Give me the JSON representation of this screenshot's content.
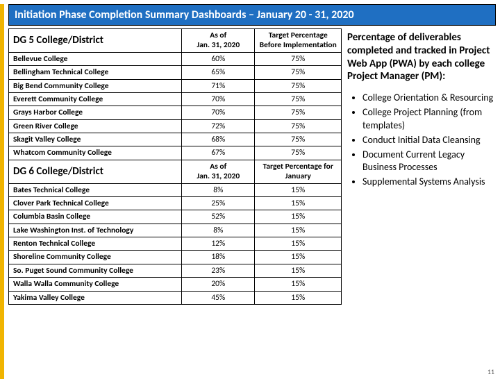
{
  "title": "Initiation Phase Completion Summary Dashboards – January 20 - 31, 2020",
  "page_number": "11",
  "accent_bar_color": "#f0b400",
  "title_bar_bg": "#1f6fc2",
  "group1": {
    "header": "DG 5 College/District",
    "col2": "As of\nJan. 31, 2020",
    "col3": "Target Percentage Before Implementation",
    "rows": [
      {
        "name": "Bellevue College",
        "asof": "60%",
        "target": "75%"
      },
      {
        "name": "Bellingham Technical College",
        "asof": "65%",
        "target": "75%"
      },
      {
        "name": "Big Bend Community College",
        "asof": "71%",
        "target": "75%"
      },
      {
        "name": "Everett Community College",
        "asof": "70%",
        "target": "75%"
      },
      {
        "name": "Grays Harbor College",
        "asof": "70%",
        "target": "75%"
      },
      {
        "name": "Green River College",
        "asof": "72%",
        "target": "75%"
      },
      {
        "name": "Skagit Valley College",
        "asof": "68%",
        "target": "75%"
      },
      {
        "name": "Whatcom Community College",
        "asof": "67%",
        "target": "75%"
      }
    ]
  },
  "group2": {
    "header": "DG 6 College/District",
    "col2": "As of\nJan. 31, 2020",
    "col3": "Target Percentage for January",
    "rows": [
      {
        "name": "Bates Technical College",
        "asof": "8%",
        "target": "15%"
      },
      {
        "name": "Clover Park Technical College",
        "asof": "25%",
        "target": "15%"
      },
      {
        "name": "Columbia Basin College",
        "asof": "52%",
        "target": "15%"
      },
      {
        "name": "Lake Washington Inst. of Technology",
        "asof": "8%",
        "target": "15%"
      },
      {
        "name": "Renton Technical College",
        "asof": "12%",
        "target": "15%"
      },
      {
        "name": "Shoreline Community College",
        "asof": "18%",
        "target": "15%"
      },
      {
        "name": "So. Puget Sound Community College",
        "asof": "23%",
        "target": "15%"
      },
      {
        "name": "Walla Walla Community College",
        "asof": "20%",
        "target": "15%"
      },
      {
        "name": "Yakima Valley College",
        "asof": "45%",
        "target": "15%"
      }
    ]
  },
  "description": "Percentage of deliverables completed and tracked in Project Web App (PWA) by each college Project Manager (PM):",
  "bullets": [
    "College Orientation & Resourcing",
    "College Project Planning (from templates)",
    "Conduct Initial Data Cleansing",
    "Document Current Legacy Business Processes",
    "Supplemental Systems Analysis"
  ],
  "fonts": {
    "title_pt": 16,
    "group_head_pt": 15,
    "cell_pt": 11.5,
    "desc_pt": 15,
    "bullet_pt": 14
  }
}
